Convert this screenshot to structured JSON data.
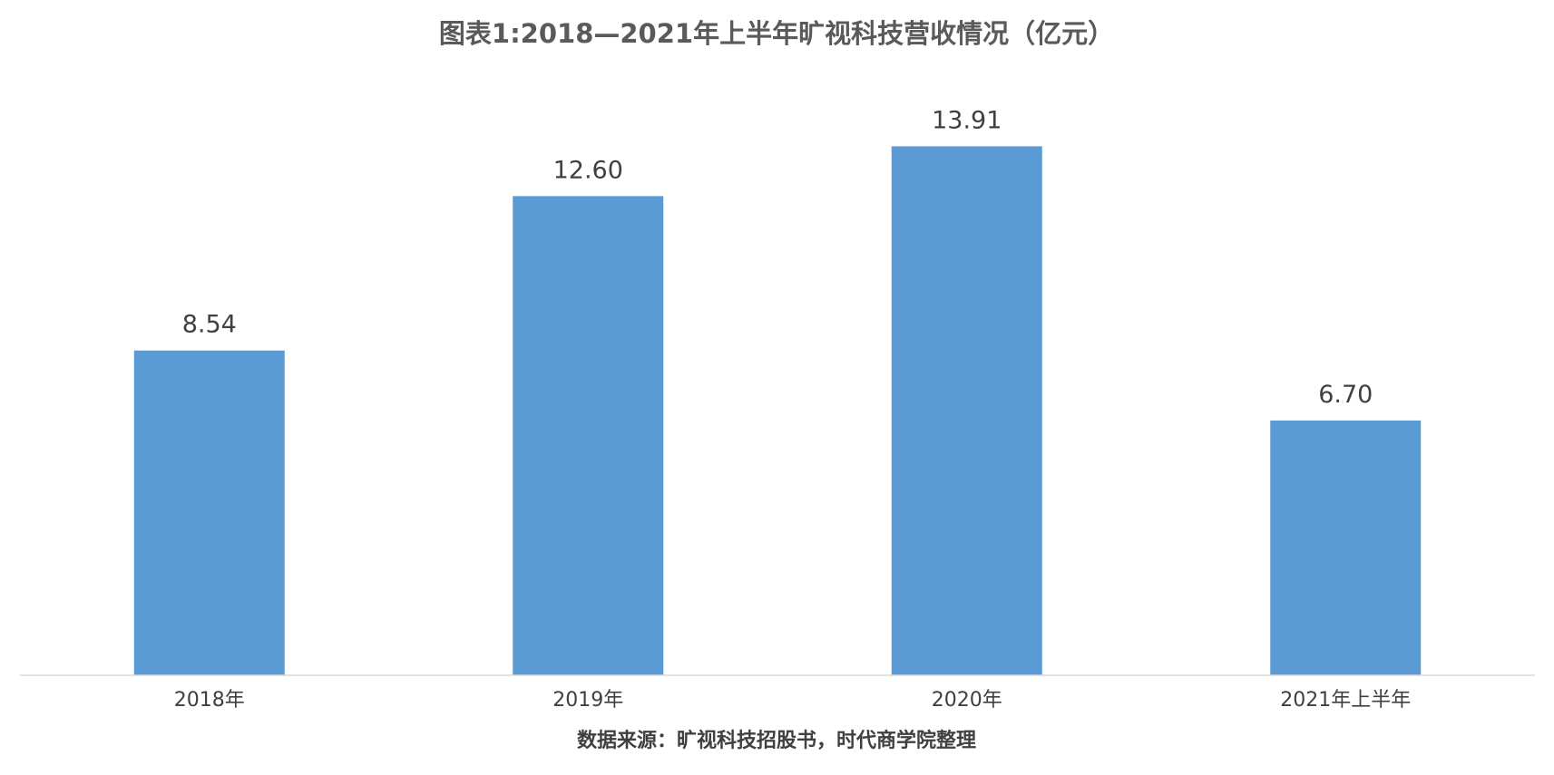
{
  "chart_data": {
    "type": "bar",
    "title": "图表1:2018—2021年上半年旷视科技营收情况（亿元）",
    "categories": [
      "2018年",
      "2019年",
      "2020年",
      "2021年上半年"
    ],
    "series": [
      {
        "values": [
          8.54,
          12.6,
          13.91,
          6.7
        ]
      }
    ],
    "value_labels": [
      "8.54",
      "12.60",
      "13.91",
      "6.70"
    ],
    "xlabel": "",
    "ylabel": "",
    "ylim": [
      0,
      15.85
    ],
    "grid": false,
    "legend": "none",
    "source": "数据来源：旷视科技招股书，时代商学院整理"
  },
  "colors": {
    "bar": "#5b9bd5",
    "axis": "#d9d9d9"
  }
}
